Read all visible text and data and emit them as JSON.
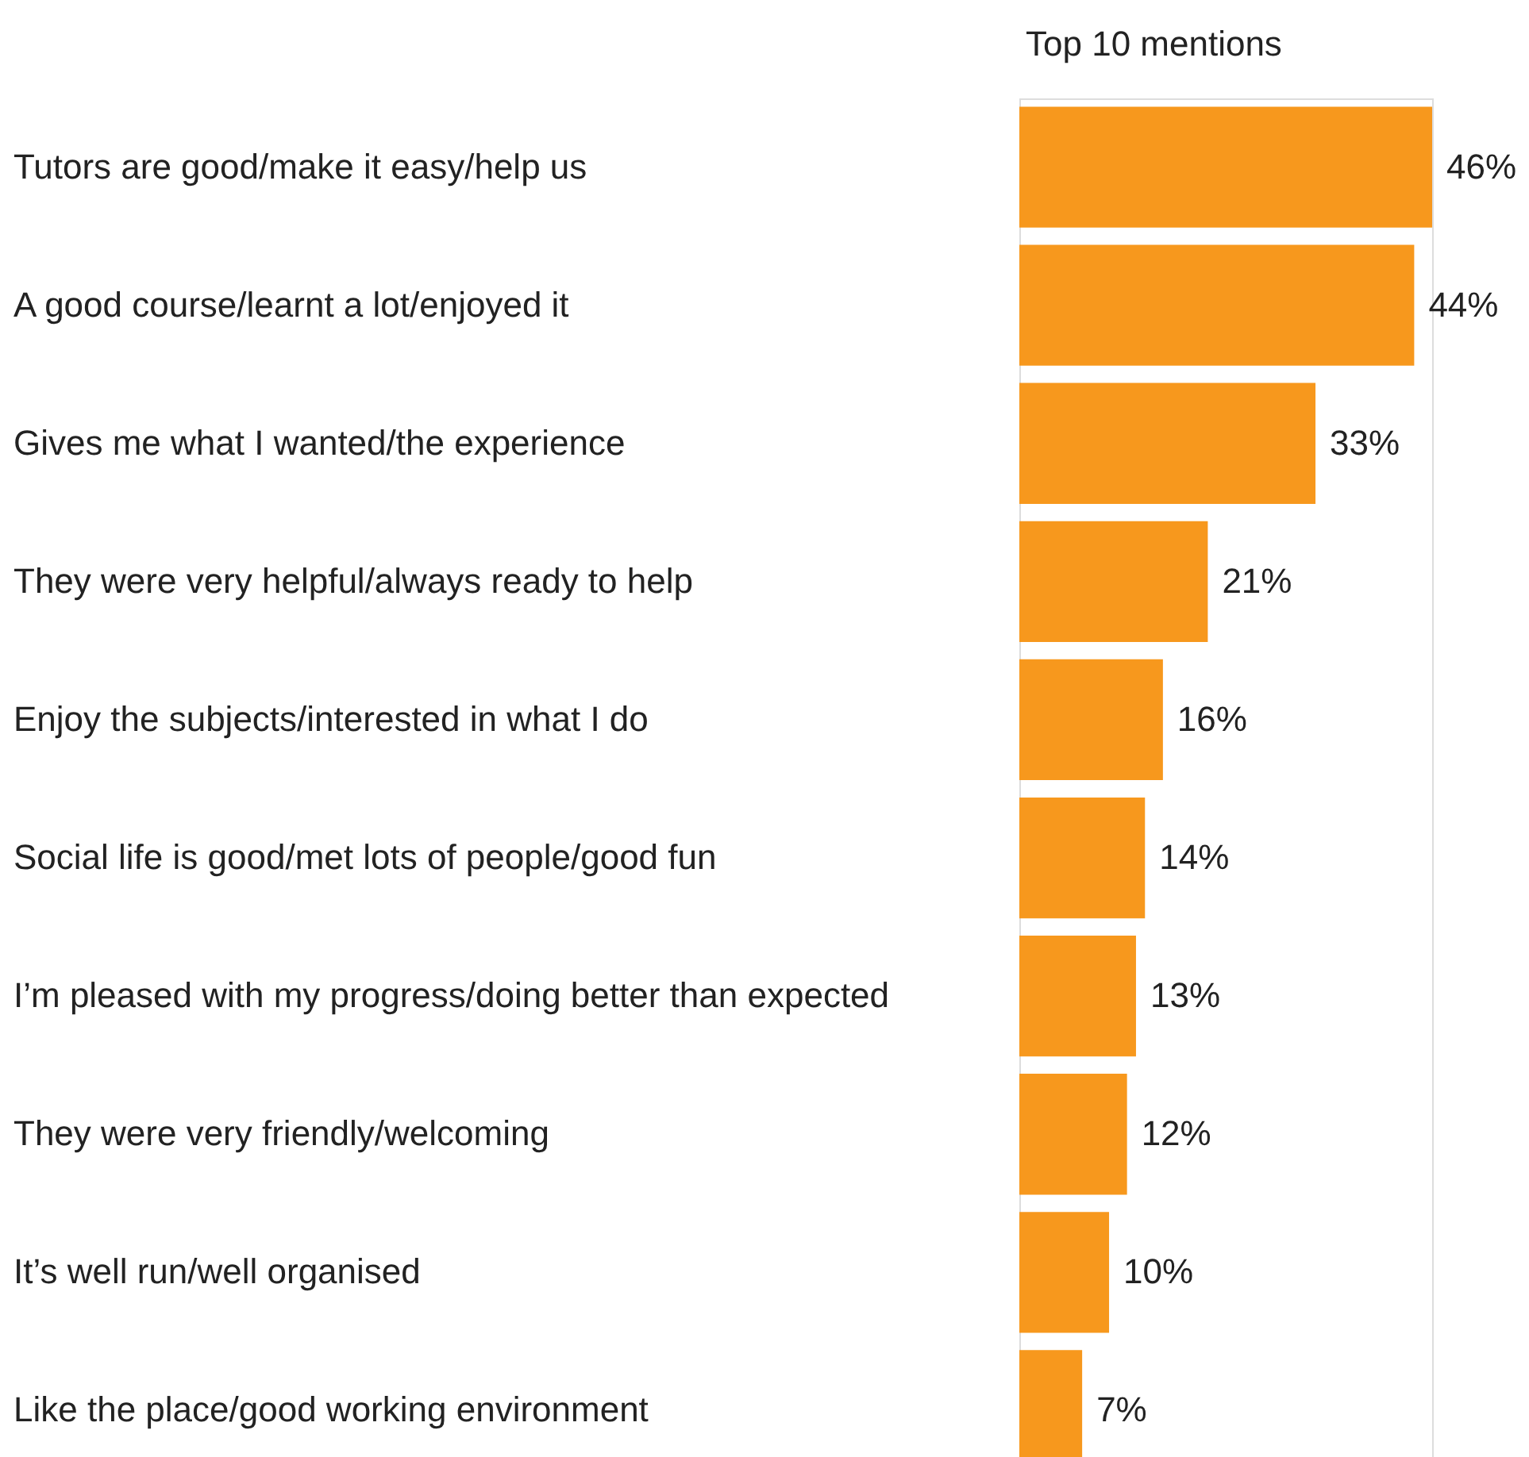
{
  "chart_data": {
    "type": "bar",
    "orientation": "horizontal",
    "title": "Top 10 mentions",
    "categories": [
      "Tutors are good/make it easy/help us",
      "A good course/learnt a lot/enjoyed it",
      "Gives me what I wanted/the experience",
      "They were very helpful/always ready to help",
      "Enjoy the subjects/interested in what I do",
      "Social life is good/met lots of people/good fun",
      "I’m pleased with my progress/doing better than expected",
      "They were very friendly/welcoming",
      "It’s well run/well organised",
      "Like the place/good working environment"
    ],
    "values": [
      46,
      44,
      33,
      21,
      16,
      14,
      13,
      12,
      10,
      7
    ],
    "value_labels": [
      "46%",
      "44%",
      "33%",
      "21%",
      "16%",
      "14%",
      "13%",
      "12%",
      "10%",
      "7%"
    ],
    "color": "#f7981d"
  }
}
